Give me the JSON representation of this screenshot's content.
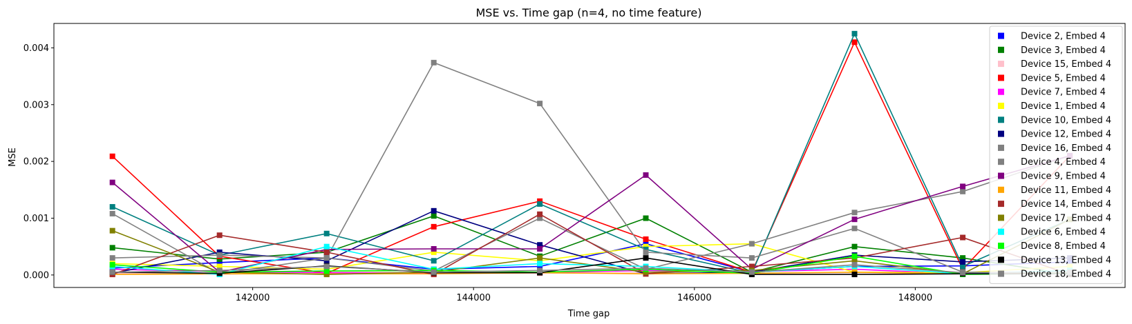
{
  "chart_data": {
    "type": "line",
    "title": "MSE vs. Time gap (n=4, no time feature)",
    "xlabel": "Time gap",
    "ylabel": "MSE",
    "xlim": [
      140200,
      149900
    ],
    "ylim": [
      -0.00022,
      0.00443
    ],
    "xticks": [
      142000,
      144000,
      146000,
      148000
    ],
    "yticks": [
      0.0,
      0.001,
      0.002,
      0.003,
      0.004
    ],
    "xtick_labels": [
      "142000",
      "144000",
      "146000",
      "148000"
    ],
    "ytick_labels": [
      "0.000",
      "0.001",
      "0.002",
      "0.003",
      "0.004"
    ],
    "grid": false,
    "legend_position": "top-right",
    "marker": "square",
    "x": [
      140730,
      141700,
      142670,
      143640,
      144600,
      145560,
      146520,
      147450,
      148430,
      149400
    ],
    "series": [
      {
        "name": "Device 2, Embed 4",
        "color": "#0000ff",
        "values": [
          0.00012,
          0.00022,
          0.0003,
          0.0001,
          0.00015,
          0.00055,
          5e-05,
          0.00015,
          0.00016,
          0.00023
        ]
      },
      {
        "name": "Device 3, Embed 4",
        "color": "#008000",
        "values": [
          0.00048,
          0.00028,
          0.0004,
          0.00104,
          0.00033,
          0.001,
          5e-05,
          0.0005,
          0.0003,
          1e-05
        ]
      },
      {
        "name": "Device 15, Embed 4",
        "color": "#ffc0cb",
        "values": [
          3e-05,
          1e-05,
          6e-05,
          4e-05,
          3e-05,
          4e-05,
          3e-05,
          4e-05,
          2e-05,
          4e-05
        ]
      },
      {
        "name": "Device 5, Embed 4",
        "color": "#ff0000",
        "values": [
          0.00209,
          0.00033,
          3e-05,
          0.00085,
          0.0013,
          0.00063,
          5e-05,
          0.0041,
          0.0001,
          0.0021
        ]
      },
      {
        "name": "Device 7, Embed 4",
        "color": "#ff00ff",
        "values": [
          0.0001,
          6e-05,
          4e-05,
          3e-05,
          4e-05,
          8e-05,
          6e-05,
          0.0001,
          2e-05,
          4e-05
        ]
      },
      {
        "name": "Device 1, Embed 4",
        "color": "#ffff00",
        "values": [
          0.0002,
          0.00015,
          0.0001,
          0.0004,
          0.00025,
          0.0005,
          0.00055,
          5e-05,
          4e-05,
          0.00015
        ]
      },
      {
        "name": "Device 10, Embed 4",
        "color": "#008080",
        "values": [
          0.0012,
          0.00035,
          0.00073,
          0.00025,
          0.00125,
          0.00045,
          3e-05,
          0.00425,
          0.00015,
          0.00098
        ]
      },
      {
        "name": "Device 12, Embed 4",
        "color": "#000080",
        "values": [
          3e-05,
          0.0004,
          0.00025,
          0.00113,
          0.00053,
          2e-05,
          5e-05,
          0.00035,
          0.00023,
          0.0003
        ]
      },
      {
        "name": "Device 16, Embed 4",
        "color": "#808080",
        "values": [
          0.0003,
          0.00035,
          0.0003,
          0.00374,
          0.00302,
          0.0004,
          0.0003,
          0.00082,
          5e-05,
          4e-05
        ]
      },
      {
        "name": "Device 4, Embed 4",
        "color": "#808080",
        "values": [
          0.00108,
          2e-05,
          0.0003,
          7e-05,
          0.001,
          0.0001,
          0.00055,
          0.0011,
          0.00147,
          0.0021
        ]
      },
      {
        "name": "Device 9, Embed 4",
        "color": "#800080",
        "values": [
          0.00163,
          5e-05,
          0.00045,
          0.00046,
          0.00046,
          0.00176,
          0.0001,
          0.00098,
          0.00156,
          0.0021
        ]
      },
      {
        "name": "Device 11, Embed 4",
        "color": "#ffa500",
        "values": [
          1e-05,
          2e-05,
          2e-05,
          2e-05,
          4e-05,
          2e-05,
          3e-05,
          5e-05,
          2e-05,
          3e-05
        ]
      },
      {
        "name": "Device 14, Embed 4",
        "color": "#a52a2a",
        "values": [
          1e-05,
          0.0007,
          0.0004,
          1e-05,
          0.00107,
          2e-05,
          0.00015,
          0.0003,
          0.00066,
          1e-05
        ]
      },
      {
        "name": "Device 17, Embed 4",
        "color": "#808000",
        "values": [
          0.00078,
          5e-05,
          1e-05,
          5e-05,
          0.0003,
          5e-05,
          8e-05,
          0.00025,
          2e-05,
          0.00098
        ]
      },
      {
        "name": "Device 6, Embed 4",
        "color": "#00ffff",
        "values": [
          0.00015,
          1e-05,
          0.0005,
          0.0001,
          0.0002,
          0.00015,
          5e-05,
          0.00015,
          2e-05,
          8e-05
        ]
      },
      {
        "name": "Device 8, Embed 4",
        "color": "#00ff00",
        "values": [
          0.00018,
          5e-05,
          7e-05,
          8e-05,
          5e-05,
          0.0001,
          3e-05,
          0.00033,
          1e-05,
          3e-05
        ]
      },
      {
        "name": "Device 13, Embed 4",
        "color": "#000000",
        "values": [
          5e-05,
          3e-05,
          0.00016,
          4e-05,
          4e-05,
          0.0003,
          1e-05,
          1e-05,
          2e-05,
          2e-05
        ]
      },
      {
        "name": "Device 18, Embed 4",
        "color": "#808080",
        "values": [
          5e-05,
          8e-05,
          0.00015,
          5e-05,
          8e-05,
          0.00012,
          5e-05,
          0.00018,
          4e-05,
          5e-05
        ]
      }
    ]
  }
}
